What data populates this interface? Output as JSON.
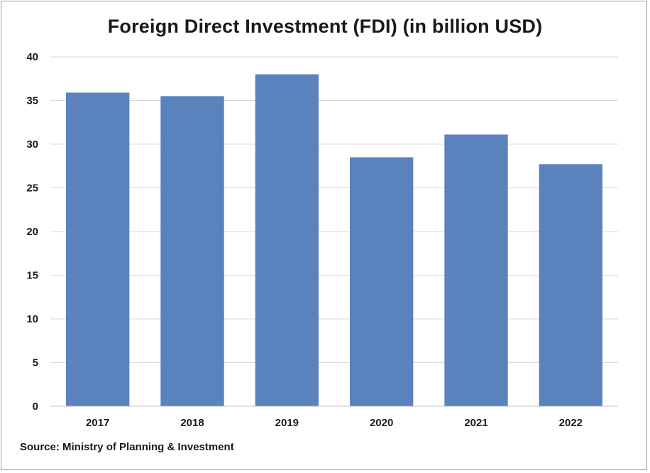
{
  "chart_data": {
    "type": "bar",
    "title": "Foreign Direct Investment (FDI) (in billion USD)",
    "categories": [
      "2017",
      "2018",
      "2019",
      "2020",
      "2021",
      "2022"
    ],
    "series": [
      {
        "values": [
          35.9,
          35.5,
          38.0,
          28.5,
          31.1,
          27.7
        ]
      }
    ],
    "xlabel": "",
    "ylabel": "",
    "ylim": [
      0,
      40
    ],
    "yticks": [
      0,
      5,
      10,
      15,
      20,
      25,
      30,
      35,
      40
    ],
    "grid": true,
    "legend": "none",
    "bar_color": "#5a82bd",
    "grid_color": "#d9d9d9"
  },
  "source": "Source: Ministry of Planning & Investment"
}
